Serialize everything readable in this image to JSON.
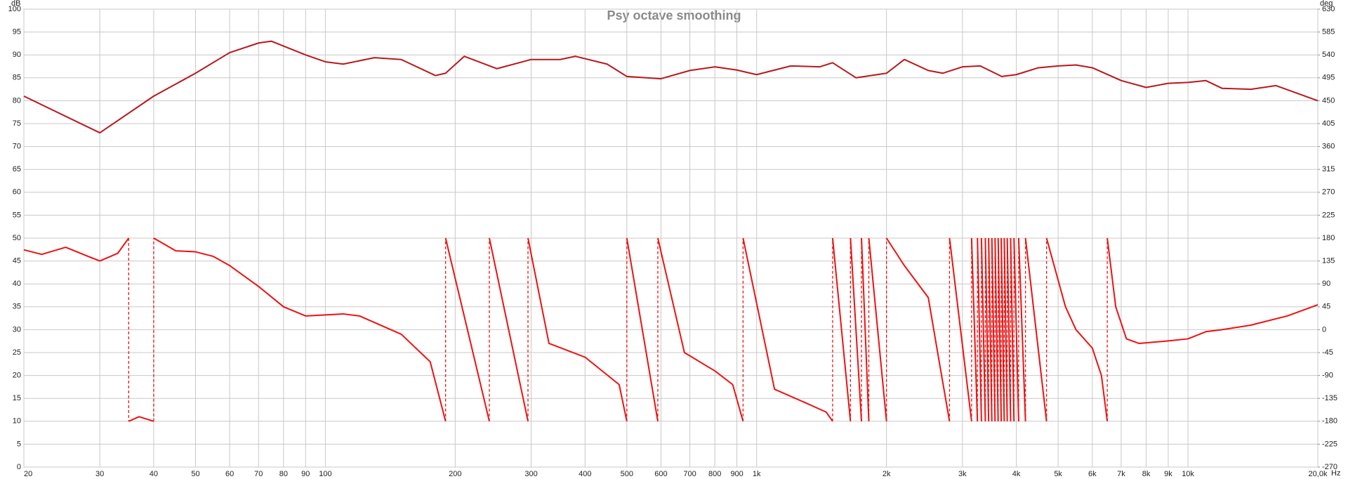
{
  "chart_data": {
    "type": "line",
    "title": "Psy octave smoothing",
    "ylabel": "dB",
    "y2label": "deg",
    "xlabel": "Hz",
    "x_scale": "log",
    "grid": true,
    "xlim": [
      20,
      20000
    ],
    "xticks": [
      20,
      30,
      40,
      50,
      60,
      70,
      80,
      90,
      100,
      200,
      300,
      400,
      500,
      600,
      700,
      800,
      900,
      {
        "value": 1000,
        "label": "1k"
      },
      {
        "value": 2000,
        "label": "2k"
      },
      {
        "value": 3000,
        "label": "3k"
      },
      {
        "value": 4000,
        "label": "4k"
      },
      {
        "value": 5000,
        "label": "5k"
      },
      {
        "value": 6000,
        "label": "6k"
      },
      {
        "value": 7000,
        "label": "7k"
      },
      {
        "value": 8000,
        "label": "8k"
      },
      {
        "value": 9000,
        "label": "9k"
      },
      {
        "value": 10000,
        "label": "10k"
      },
      {
        "value": 20000,
        "label": "20,0k"
      }
    ],
    "ylim": [
      0,
      100
    ],
    "yticks": [
      0,
      5,
      10,
      15,
      20,
      25,
      30,
      35,
      40,
      45,
      50,
      55,
      60,
      65,
      70,
      75,
      80,
      85,
      90,
      95,
      100
    ],
    "y2lim": [
      -270,
      630
    ],
    "y2ticks": [
      -270,
      -225,
      -180,
      -135,
      -90,
      -45,
      0,
      45,
      90,
      135,
      180,
      225,
      270,
      315,
      360,
      405,
      450,
      495,
      540,
      585,
      630
    ],
    "series": [
      {
        "color": "#b8181c",
        "axis": "y",
        "x": [
          20,
          30,
          40,
          50,
          60,
          70,
          75,
          90,
          100,
          110,
          130,
          150,
          180,
          190,
          210,
          250,
          300,
          350,
          380,
          450,
          500,
          600,
          700,
          800,
          900,
          1000,
          1200,
          1400,
          1500,
          1700,
          2000,
          2200,
          2500,
          2700,
          3000,
          3300,
          3700,
          4000,
          4500,
          5000,
          5500,
          6000,
          7000,
          8000,
          9000,
          10000,
          11000,
          12000,
          14000,
          16000,
          20000
        ],
        "values": [
          81,
          73,
          81,
          86,
          90.5,
          92.6,
          93,
          90,
          88.5,
          88,
          89.4,
          89,
          85.5,
          86,
          89.7,
          87,
          89,
          89,
          89.7,
          88,
          85.3,
          84.8,
          86.6,
          87.4,
          86.7,
          85.7,
          87.6,
          87.4,
          88.3,
          85,
          86,
          89,
          86.6,
          86,
          87.4,
          87.6,
          85.3,
          85.7,
          87.2,
          87.6,
          87.8,
          87.2,
          84.4,
          82.9,
          83.8,
          84,
          84.4,
          82.7,
          82.5,
          83.3,
          80
        ]
      },
      {
        "color": "#ee1111",
        "axis": "y2",
        "x": [
          20,
          22,
          25,
          28,
          30,
          33,
          35,
          35,
          37,
          40,
          40,
          45,
          50,
          55,
          60,
          70,
          80,
          90,
          110,
          120,
          150,
          175,
          190,
          190,
          240,
          240,
          295,
          295,
          330,
          400,
          480,
          500,
          500,
          590,
          590,
          680,
          800,
          880,
          930,
          930,
          1100,
          1300,
          1450,
          1500,
          1500,
          1650,
          1650,
          1750,
          1750,
          1820,
          1820,
          2000,
          2000,
          2200,
          2500,
          2650,
          2800,
          2800,
          3150,
          3150,
          3250,
          3250,
          3320,
          3320,
          3390,
          3390,
          3450,
          3450,
          3510,
          3510,
          3570,
          3570,
          3630,
          3630,
          3690,
          3690,
          3750,
          3750,
          3810,
          3810,
          3880,
          3880,
          3950,
          3950,
          4050,
          4050,
          4200,
          4200,
          4700,
          4700,
          5200,
          5500,
          6000,
          6300,
          6500,
          6500,
          6800,
          7200,
          7700,
          9000,
          10000,
          11000,
          12000,
          14000,
          17000,
          20000
        ],
        "values": [
          157,
          148,
          162,
          145,
          135,
          150,
          180,
          -180,
          -171,
          -180,
          180,
          155,
          153,
          144,
          126,
          85,
          45,
          27,
          31,
          27,
          -9,
          -63,
          -180,
          180,
          -180,
          180,
          -180,
          180,
          -27,
          -54,
          -108,
          -180,
          180,
          -180,
          180,
          -45,
          -81,
          -108,
          -180,
          180,
          -117,
          -144,
          -162,
          -180,
          180,
          -180,
          180,
          -180,
          180,
          -180,
          180,
          -180,
          180,
          126,
          63,
          -63,
          -180,
          180,
          -180,
          180,
          -180,
          180,
          -180,
          180,
          -180,
          180,
          -180,
          180,
          -180,
          180,
          -180,
          180,
          -180,
          180,
          -180,
          180,
          -180,
          180,
          -180,
          180,
          -180,
          180,
          -180,
          180,
          -180,
          180,
          -180,
          180,
          -180,
          180,
          45,
          0,
          -36,
          -90,
          -180,
          180,
          45,
          -18,
          -27,
          -22,
          -18,
          -4,
          0,
          9,
          27,
          49
        ]
      }
    ]
  }
}
